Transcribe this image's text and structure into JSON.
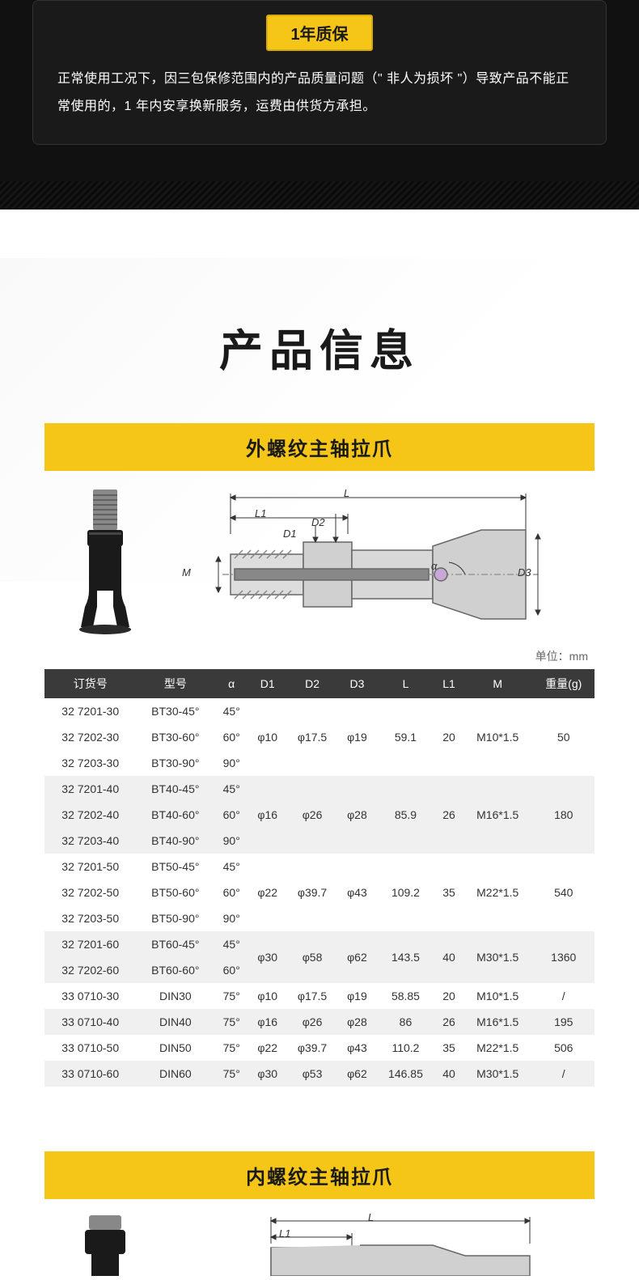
{
  "warranty": {
    "badge": "1年质保",
    "text": "正常使用工况下，因三包保修范围内的产品质量问题（\" 非人为损坏 \"）导致产品不能正常使用的，1 年内安享换新服务，运费由供货方承担。"
  },
  "info_title": "产品信息",
  "unit_label": "单位：mm",
  "section1": {
    "title": "外螺纹主轴拉爪",
    "columns": [
      "订货号",
      "型号",
      "α",
      "D1",
      "D2",
      "D3",
      "L",
      "L1",
      "M",
      "重量(g)"
    ],
    "groups": [
      {
        "shade": false,
        "rows": [
          [
            "32 7201-30",
            "BT30-45°",
            "45°"
          ],
          [
            "32 7202-30",
            "BT30-60°",
            "60°"
          ],
          [
            "32 7203-30",
            "BT30-90°",
            "90°"
          ]
        ],
        "shared": [
          "φ10",
          "φ17.5",
          "φ19",
          "59.1",
          "20",
          "M10*1.5",
          "50"
        ]
      },
      {
        "shade": true,
        "rows": [
          [
            "32 7201-40",
            "BT40-45°",
            "45°"
          ],
          [
            "32 7202-40",
            "BT40-60°",
            "60°"
          ],
          [
            "32 7203-40",
            "BT40-90°",
            "90°"
          ]
        ],
        "shared": [
          "φ16",
          "φ26",
          "φ28",
          "85.9",
          "26",
          "M16*1.5",
          "180"
        ]
      },
      {
        "shade": false,
        "rows": [
          [
            "32 7201-50",
            "BT50-45°",
            "45°"
          ],
          [
            "32 7202-50",
            "BT50-60°",
            "60°"
          ],
          [
            "32 7203-50",
            "BT50-90°",
            "90°"
          ]
        ],
        "shared": [
          "φ22",
          "φ39.7",
          "φ43",
          "109.2",
          "35",
          "M22*1.5",
          "540"
        ]
      },
      {
        "shade": true,
        "rows": [
          [
            "32 7201-60",
            "BT60-45°",
            "45°"
          ],
          [
            "32 7202-60",
            "BT60-60°",
            "60°"
          ]
        ],
        "shared": [
          "φ30",
          "φ58",
          "φ62",
          "143.5",
          "40",
          "M30*1.5",
          "1360"
        ]
      }
    ],
    "singles": [
      {
        "shade": false,
        "cells": [
          "33 0710-30",
          "DIN30",
          "75°",
          "φ10",
          "φ17.5",
          "φ19",
          "58.85",
          "20",
          "M10*1.5",
          "/"
        ]
      },
      {
        "shade": true,
        "cells": [
          "33 0710-40",
          "DIN40",
          "75°",
          "φ16",
          "φ26",
          "φ28",
          "86",
          "26",
          "M16*1.5",
          "195"
        ]
      },
      {
        "shade": false,
        "cells": [
          "33 0710-50",
          "DIN50",
          "75°",
          "φ22",
          "φ39.7",
          "φ43",
          "110.2",
          "35",
          "M22*1.5",
          "506"
        ]
      },
      {
        "shade": true,
        "cells": [
          "33 0710-60",
          "DIN60",
          "75°",
          "φ30",
          "φ53",
          "φ62",
          "146.85",
          "40",
          "M30*1.5",
          "/"
        ]
      }
    ]
  },
  "section2": {
    "title": "内螺纹主轴拉爪"
  },
  "diagram_labels": {
    "L": "L",
    "L1": "L1",
    "D1": "D1",
    "D2": "D2",
    "D3": "D3",
    "M": "M",
    "alpha": "α"
  },
  "colors": {
    "accent": "#f5c518",
    "dark": "#1a1a1a",
    "header_bg": "#3a3a3a",
    "shade_row": "#f0f0f0"
  }
}
